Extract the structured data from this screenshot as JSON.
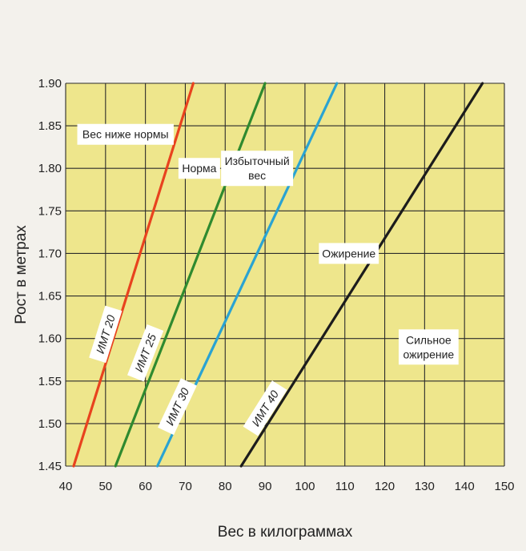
{
  "chart_data": {
    "type": "line",
    "title": "",
    "xlabel": "Вес в килограммах",
    "ylabel": "Рост в метрах",
    "xlim": [
      40,
      150
    ],
    "ylim": [
      1.45,
      1.9
    ],
    "x_ticks": [
      "40",
      "50",
      "60",
      "70",
      "80",
      "90",
      "100",
      "110",
      "120",
      "130",
      "140",
      "150"
    ],
    "y_ticks": [
      "1.45",
      "1.50",
      "1.55",
      "1.60",
      "1.65",
      "1.70",
      "1.75",
      "1.80",
      "1.85",
      "1.90"
    ],
    "grid": true,
    "colors": {
      "plot_bg": "#eee68c",
      "grid": "#2b2b2b",
      "bmi20": "#e8431e",
      "bmi25": "#2f8a2f",
      "bmi30": "#2aa3d2",
      "bmi40": "#1c1c1c",
      "label_bg": "#ffffff"
    },
    "series": [
      {
        "label": "ИМТ 20",
        "bmi": 20,
        "color_key": "bmi20",
        "points": [
          [
            42,
            1.45
          ],
          [
            72,
            1.9
          ]
        ]
      },
      {
        "label": "ИМТ 25",
        "bmi": 25,
        "color_key": "bmi25",
        "points": [
          [
            52.5,
            1.45
          ],
          [
            90,
            1.9
          ]
        ]
      },
      {
        "label": "ИМТ 30",
        "bmi": 30,
        "color_key": "bmi30",
        "points": [
          [
            63,
            1.45
          ],
          [
            108,
            1.9
          ]
        ]
      },
      {
        "label": "ИМТ 40",
        "bmi": 40,
        "color_key": "bmi40",
        "points": [
          [
            84,
            1.45
          ],
          [
            144.5,
            1.9
          ]
        ]
      }
    ],
    "series_label_at": [
      {
        "x": 50,
        "y": 1.605
      },
      {
        "x": 60,
        "y": 1.583
      },
      {
        "x": 68,
        "y": 1.52
      },
      {
        "x": 90,
        "y": 1.518
      }
    ],
    "zones": [
      {
        "lines": [
          "Вес ниже нормы"
        ],
        "x": 55,
        "y": 1.84
      },
      {
        "lines": [
          "Норма"
        ],
        "x": 73.5,
        "y": 1.8
      },
      {
        "lines": [
          "Избыточный",
          "вес"
        ],
        "x": 88,
        "y": 1.8
      },
      {
        "lines": [
          "Ожирение"
        ],
        "x": 111,
        "y": 1.7
      },
      {
        "lines": [
          "Сильное",
          "ожирение"
        ],
        "x": 131,
        "y": 1.59
      }
    ]
  }
}
